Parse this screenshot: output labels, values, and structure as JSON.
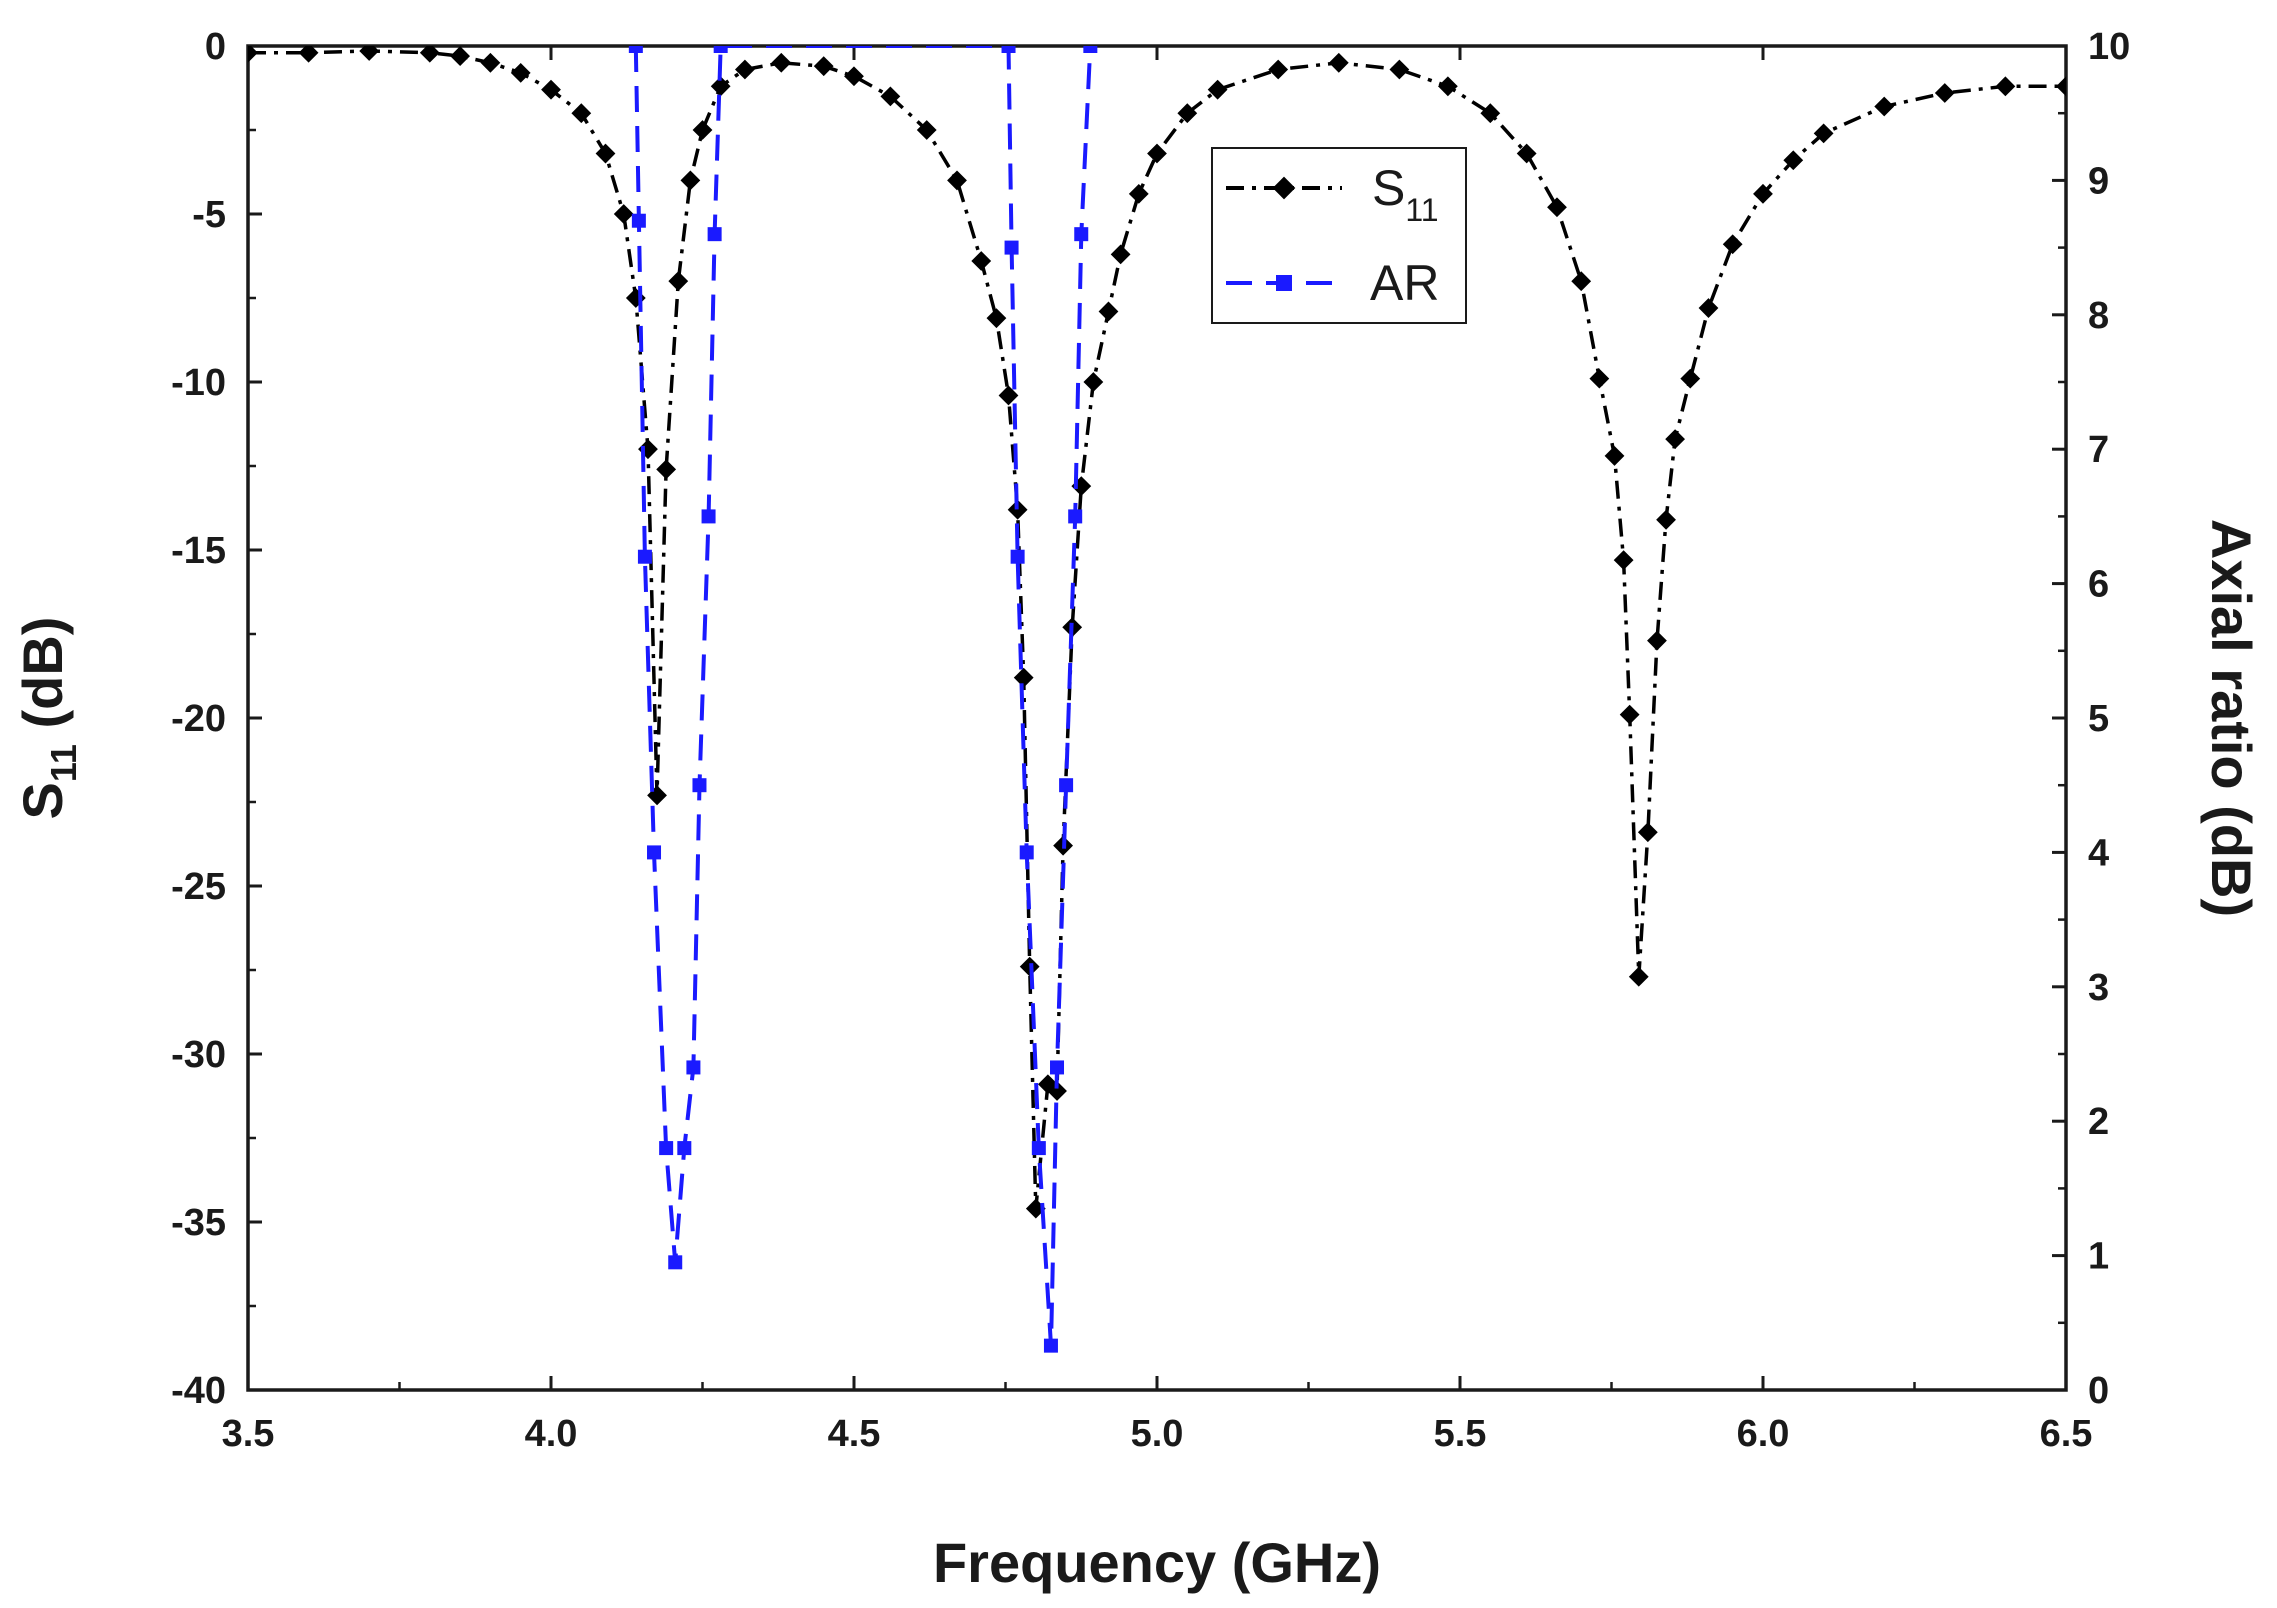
{
  "chart_data": {
    "type": "line",
    "xlabel": "Frequency (GHz)",
    "ylabel_left": {
      "main": "S",
      "sub": "11",
      "suffix": " (dB)"
    },
    "ylabel_right": "Axial ratio (dB)",
    "xlim": [
      3.5,
      6.5
    ],
    "ylim_left": [
      -40,
      0
    ],
    "ylim_right": [
      0,
      10
    ],
    "x_ticks": [
      "3.5",
      "4.0",
      "4.5",
      "5.0",
      "5.5",
      "6.0",
      "6.5"
    ],
    "y_left_ticks": [
      "0",
      "-5",
      "-10",
      "-15",
      "-20",
      "-25",
      "-30",
      "-35",
      "-40"
    ],
    "y_right_ticks": [
      "0",
      "1",
      "2",
      "3",
      "4",
      "5",
      "6",
      "7",
      "8",
      "9",
      "10"
    ],
    "legend": {
      "position": "upper-center-right",
      "entries": [
        {
          "main": "S",
          "sub": "11",
          "style": "dash-dot",
          "marker": "diamond",
          "color": "#000000"
        },
        {
          "main": "AR",
          "sub": "",
          "style": "dashed",
          "marker": "square",
          "color": "#1a1aff"
        }
      ]
    },
    "series": [
      {
        "name": "S11",
        "axis": "left",
        "color": "#000000",
        "points": [
          [
            3.5,
            -0.2
          ],
          [
            3.6,
            -0.2
          ],
          [
            3.7,
            -0.15
          ],
          [
            3.8,
            -0.2
          ],
          [
            3.85,
            -0.3
          ],
          [
            3.9,
            -0.5
          ],
          [
            3.95,
            -0.8
          ],
          [
            4.0,
            -1.3
          ],
          [
            4.05,
            -2.0
          ],
          [
            4.09,
            -3.2
          ],
          [
            4.12,
            -5.0
          ],
          [
            4.14,
            -7.5
          ],
          [
            4.16,
            -12.0
          ],
          [
            4.175,
            -22.3
          ],
          [
            4.19,
            -12.6
          ],
          [
            4.21,
            -7.0
          ],
          [
            4.23,
            -4.0
          ],
          [
            4.25,
            -2.5
          ],
          [
            4.28,
            -1.2
          ],
          [
            4.32,
            -0.7
          ],
          [
            4.38,
            -0.5
          ],
          [
            4.45,
            -0.6
          ],
          [
            4.5,
            -0.9
          ],
          [
            4.56,
            -1.5
          ],
          [
            4.62,
            -2.5
          ],
          [
            4.67,
            -4.0
          ],
          [
            4.71,
            -6.4
          ],
          [
            4.735,
            -8.1
          ],
          [
            4.755,
            -10.4
          ],
          [
            4.77,
            -13.8
          ],
          [
            4.78,
            -18.8
          ],
          [
            4.79,
            -27.4
          ],
          [
            4.8,
            -34.6
          ],
          [
            4.82,
            -30.9
          ],
          [
            4.835,
            -31.1
          ],
          [
            4.845,
            -23.8
          ],
          [
            4.86,
            -17.3
          ],
          [
            4.875,
            -13.1
          ],
          [
            4.895,
            -10.0
          ],
          [
            4.92,
            -7.9
          ],
          [
            4.94,
            -6.2
          ],
          [
            4.97,
            -4.4
          ],
          [
            5.0,
            -3.2
          ],
          [
            5.05,
            -2.0
          ],
          [
            5.1,
            -1.3
          ],
          [
            5.2,
            -0.7
          ],
          [
            5.3,
            -0.5
          ],
          [
            5.4,
            -0.7
          ],
          [
            5.48,
            -1.2
          ],
          [
            5.55,
            -2.0
          ],
          [
            5.61,
            -3.2
          ],
          [
            5.66,
            -4.8
          ],
          [
            5.7,
            -7.0
          ],
          [
            5.73,
            -9.9
          ],
          [
            5.755,
            -12.2
          ],
          [
            5.77,
            -15.3
          ],
          [
            5.78,
            -19.9
          ],
          [
            5.795,
            -27.7
          ],
          [
            5.81,
            -23.4
          ],
          [
            5.825,
            -17.7
          ],
          [
            5.84,
            -14.1
          ],
          [
            5.855,
            -11.7
          ],
          [
            5.88,
            -9.9
          ],
          [
            5.91,
            -7.8
          ],
          [
            5.95,
            -5.9
          ],
          [
            6.0,
            -4.4
          ],
          [
            6.05,
            -3.4
          ],
          [
            6.1,
            -2.6
          ],
          [
            6.2,
            -1.8
          ],
          [
            6.3,
            -1.4
          ],
          [
            6.4,
            -1.2
          ],
          [
            6.5,
            -1.2
          ]
        ]
      },
      {
        "name": "AR",
        "axis": "right",
        "color": "#1a1aff",
        "points": [
          [
            4.14,
            10.0
          ],
          [
            4.145,
            8.7
          ],
          [
            4.155,
            6.2
          ],
          [
            4.17,
            4.0
          ],
          [
            4.19,
            1.8
          ],
          [
            4.205,
            0.95
          ],
          [
            4.22,
            1.8
          ],
          [
            4.235,
            2.4
          ],
          [
            4.245,
            4.5
          ],
          [
            4.26,
            6.5
          ],
          [
            4.27,
            8.6
          ],
          [
            4.28,
            10.0
          ],
          [
            4.755,
            10.0
          ],
          [
            4.76,
            8.5
          ],
          [
            4.77,
            6.2
          ],
          [
            4.785,
            4.0
          ],
          [
            4.805,
            1.8
          ],
          [
            4.825,
            0.33
          ],
          [
            4.835,
            2.4
          ],
          [
            4.85,
            4.5
          ],
          [
            4.865,
            6.5
          ],
          [
            4.875,
            8.6
          ],
          [
            4.89,
            10.0
          ]
        ]
      }
    ]
  }
}
